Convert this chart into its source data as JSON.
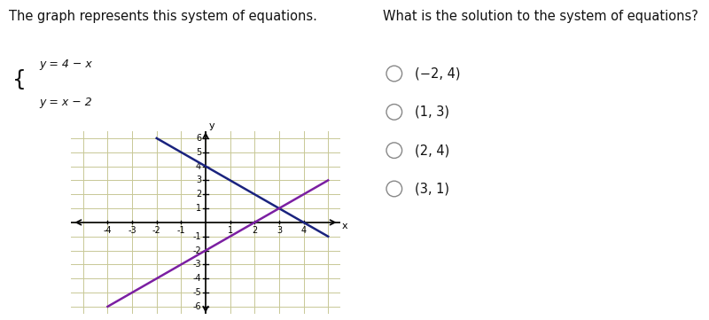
{
  "title_left": "The graph represents this system of equations.",
  "title_right": "What is the solution to the system of equations?",
  "eq1": "y = 4 − x",
  "eq2": "y = x − 2",
  "line1_color": "#1a237e",
  "line2_color": "#7b1fa2",
  "grid_bg": "#f0f0dc",
  "grid_line_color": "#c8c896",
  "axis_color": "#000000",
  "xlim": [
    -5,
    5
  ],
  "ylim": [
    -6,
    6
  ],
  "xticks": [
    -4,
    -3,
    -2,
    -1,
    1,
    2,
    3,
    4
  ],
  "yticks": [
    -6,
    -5,
    -4,
    -3,
    -2,
    -1,
    1,
    2,
    3,
    4,
    5,
    6
  ],
  "choices": [
    "(−2, 4)",
    "(1, 3)",
    "(2, 4)",
    "(3, 1)"
  ],
  "bg_color": "#ffffff",
  "text_color": "#111111",
  "font_size_title": 10.5,
  "font_size_eq": 9,
  "font_size_choices": 10.5,
  "font_size_tick": 7
}
